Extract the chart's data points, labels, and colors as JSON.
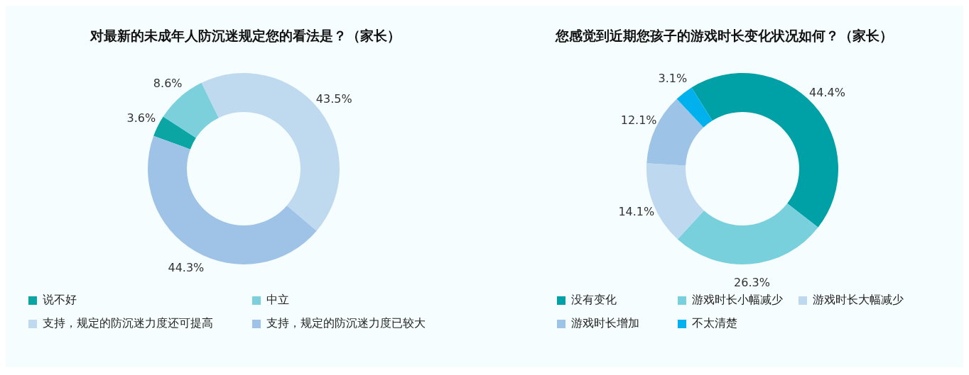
{
  "chart_data": [
    {
      "type": "donut",
      "title": "对最新的未成年人防沉迷规定您的看法是？（家长）",
      "categories": [
        "说不好",
        "中立",
        "支持，规定的防沉迷力度还可提高",
        "支持，规定的防沉迷力度已较大"
      ],
      "values": [
        3.6,
        8.6,
        43.5,
        44.3
      ],
      "value_labels": [
        "3.6%",
        "8.6%",
        "43.5%",
        "44.3%"
      ],
      "colors": [
        "#0ba5a4",
        "#7bd0dc",
        "#bfd9ef",
        "#9ec3e7"
      ],
      "legend": "bottom"
    },
    {
      "type": "donut",
      "title": "您感觉到近期您孩子的游戏时长变化状况如何？（家长）",
      "categories": [
        "没有变化",
        "游戏时长小幅减少",
        "游戏时长大幅减少",
        "游戏时长增加",
        "不太清楚"
      ],
      "values": [
        44.4,
        26.3,
        14.1,
        12.1,
        3.1
      ],
      "value_labels": [
        "44.4%",
        "26.3%",
        "14.1%",
        "12.1%",
        "3.1%"
      ],
      "colors": [
        "#00a1a6",
        "#78d0dc",
        "#bed8ef",
        "#9dc3e6",
        "#00b1ee"
      ],
      "legend": "bottom"
    }
  ]
}
